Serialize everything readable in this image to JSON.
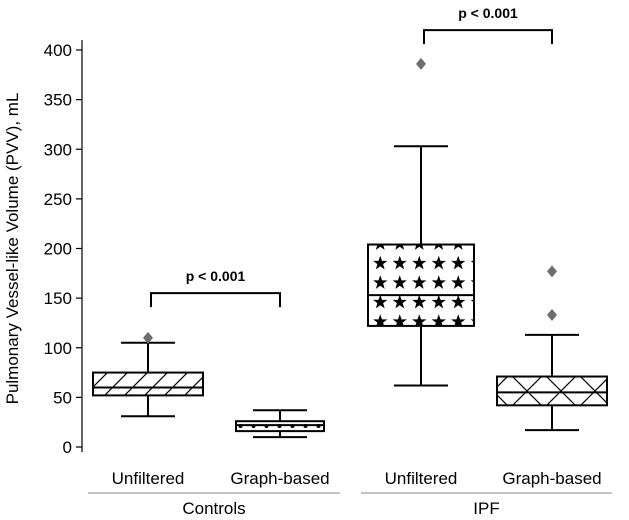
{
  "chart_data": {
    "type": "box",
    "ylabel": "Pulmonary Vessel-like Volume (PVV), mL",
    "xlabel": "",
    "ylim": [
      -5,
      410
    ],
    "yticks": [
      0,
      50,
      100,
      150,
      200,
      250,
      300,
      350,
      400
    ],
    "groups": [
      {
        "name": "Controls",
        "categories": [
          "Unfiltered",
          "Graph-based"
        ]
      },
      {
        "name": "IPF",
        "categories": [
          "Unfiltered",
          "Graph-based"
        ]
      }
    ],
    "boxes": [
      {
        "group": "Controls",
        "category": "Unfiltered",
        "whisker_low": 31,
        "q1": 52,
        "median": 60,
        "q3": 75,
        "whisker_high": 105,
        "outliers": [
          110
        ],
        "hatch": "diagonal"
      },
      {
        "group": "Controls",
        "category": "Graph-based",
        "whisker_low": 10,
        "q1": 16,
        "median": 22,
        "q3": 26,
        "whisker_high": 37,
        "outliers": [],
        "hatch": "dots"
      },
      {
        "group": "IPF",
        "category": "Unfiltered",
        "whisker_low": 62,
        "q1": 122,
        "median": 153,
        "q3": 204,
        "whisker_high": 303,
        "outliers": [
          386
        ],
        "hatch": "stars"
      },
      {
        "group": "IPF",
        "category": "Graph-based",
        "whisker_low": 17,
        "q1": 42,
        "median": 55,
        "q3": 71,
        "whisker_high": 113,
        "outliers": [
          133,
          177
        ],
        "hatch": "crosshatch"
      }
    ],
    "annotations": [
      {
        "text": "p < 0.001",
        "between": [
          0,
          1
        ],
        "bracket_y": 155
      },
      {
        "text": "p < 0.001",
        "between": [
          2,
          3
        ],
        "bracket_y": 420
      }
    ],
    "colors": {
      "outlier": "#6e6e6e",
      "line": "#000000",
      "box_fill": "#ffffff"
    }
  }
}
